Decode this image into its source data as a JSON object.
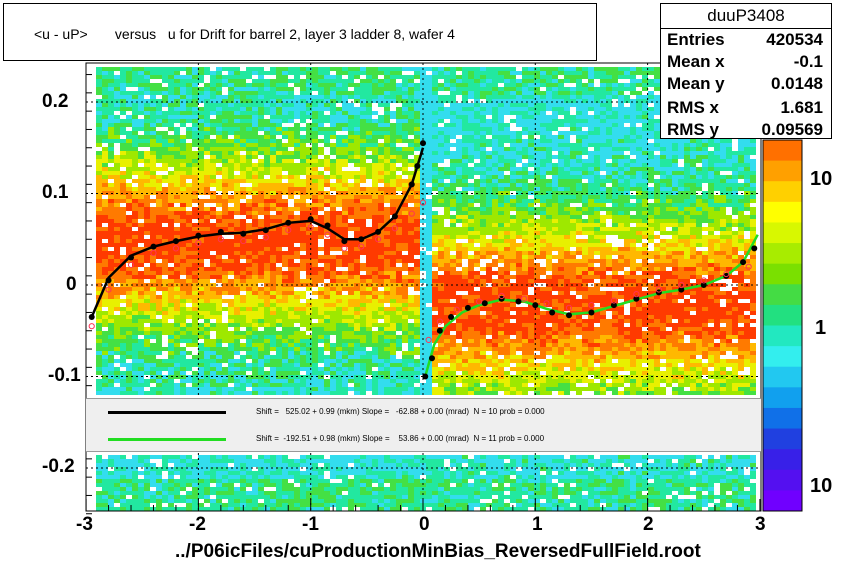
{
  "title": "<u - uP>       versus   u for Drift for barrel 2, layer 3 ladder 8, wafer 4",
  "stats": {
    "name": "duuP3408",
    "rows": [
      {
        "key": "Entries",
        "value": "420534"
      },
      {
        "key": "Mean x",
        "value": "-0.1"
      },
      {
        "key": "Mean y",
        "value": "0.0148"
      },
      {
        "key": "RMS x",
        "value": "1.681"
      },
      {
        "key": "RMS y",
        "value": "0.09569"
      }
    ]
  },
  "fits": [
    {
      "color": "#000000",
      "text": "Shift =   525.02 + 0.99 (mkm) Slope =   -62.88 + 0.00 (mrad)  N = 10 prob = 0.000"
    },
    {
      "color": "#22dd22",
      "text": "Shift =  -192.51 + 0.98 (mkm) Slope =    53.86 + 0.00 (mrad)  N = 11 prob = 0.000"
    }
  ],
  "file_label": "../P06icFiles/cuProductionMinBias_ReversedFullField.root",
  "x_ticks": [
    "-3",
    "-2",
    "-1",
    "0",
    "1",
    "2",
    "3"
  ],
  "y_ticks": [
    "0.2",
    "0.1",
    "0",
    "-0.1",
    "-0.2"
  ],
  "z_ticks": [
    "10",
    "1",
    "10"
  ],
  "chart_data": {
    "type": "heatmap",
    "xlim": [
      -3,
      3
    ],
    "ylim": [
      -0.25,
      0.25
    ],
    "grid": true,
    "series": [
      {
        "marker": "black-filled",
        "x": [
          -2.95,
          -2.8,
          -2.6,
          -2.4,
          -2.2,
          -2.0,
          -1.8,
          -1.6,
          -1.4,
          -1.2,
          -1.0,
          -0.85,
          -0.7,
          -0.55,
          -0.4,
          -0.25,
          -0.1,
          -0.05,
          0.0
        ],
        "y": [
          -0.035,
          0.005,
          0.03,
          0.042,
          0.048,
          0.054,
          0.058,
          0.056,
          0.06,
          0.068,
          0.072,
          0.065,
          0.048,
          0.05,
          0.058,
          0.075,
          0.11,
          0.13,
          0.155
        ]
      },
      {
        "marker": "black-filled",
        "x": [
          0.02,
          0.08,
          0.15,
          0.25,
          0.4,
          0.55,
          0.7,
          0.85,
          1.0,
          1.15,
          1.3,
          1.5,
          1.7,
          1.9,
          2.1,
          2.3,
          2.5,
          2.7,
          2.85,
          2.95
        ],
        "y": [
          -0.1,
          -0.08,
          -0.05,
          -0.035,
          -0.025,
          -0.02,
          -0.015,
          -0.018,
          -0.022,
          -0.03,
          -0.033,
          -0.03,
          -0.022,
          -0.015,
          -0.008,
          -0.005,
          0.0,
          0.01,
          0.025,
          0.04
        ]
      },
      {
        "marker": "red-open",
        "x": [
          -2.95,
          -2.8,
          -2.6,
          -2.4,
          -2.2,
          -2.0,
          -1.8,
          -1.6,
          -1.4,
          -1.2,
          -1.0,
          -0.85,
          -0.7,
          -0.55,
          -0.4,
          -0.25,
          -0.1,
          0.0
        ],
        "y": [
          -0.045,
          -0.005,
          0.022,
          0.035,
          0.04,
          0.046,
          0.05,
          0.048,
          0.052,
          0.06,
          0.063,
          0.055,
          0.04,
          0.042,
          0.05,
          0.062,
          0.078,
          0.09
        ]
      },
      {
        "marker": "red-open",
        "x": [
          0.05,
          0.15,
          0.3,
          0.5,
          0.7,
          0.9,
          1.1,
          1.3,
          1.5,
          1.7,
          1.9,
          2.1,
          2.3,
          2.5,
          2.7,
          2.9
        ],
        "y": [
          -0.06,
          -0.04,
          -0.027,
          -0.018,
          -0.012,
          -0.015,
          -0.02,
          -0.025,
          -0.022,
          -0.017,
          -0.01,
          -0.005,
          0.0,
          0.005,
          0.012,
          0.02
        ]
      }
    ],
    "fit_curves": [
      {
        "color": "#000000",
        "x": [
          -2.95,
          -2.8,
          -2.6,
          -2.4,
          -2.2,
          -2.0,
          -1.8,
          -1.6,
          -1.4,
          -1.2,
          -1.0,
          -0.85,
          -0.7,
          -0.55,
          -0.4,
          -0.25,
          -0.1,
          0.0
        ],
        "y": [
          -0.035,
          0.008,
          0.032,
          0.042,
          0.048,
          0.053,
          0.056,
          0.057,
          0.061,
          0.068,
          0.07,
          0.062,
          0.05,
          0.05,
          0.058,
          0.075,
          0.11,
          0.15
        ]
      },
      {
        "color": "#22dd22",
        "x": [
          0.02,
          0.1,
          0.2,
          0.35,
          0.5,
          0.7,
          0.9,
          1.1,
          1.3,
          1.5,
          1.7,
          1.9,
          2.1,
          2.3,
          2.5,
          2.7,
          2.85,
          2.98
        ],
        "y": [
          -0.1,
          -0.065,
          -0.045,
          -0.03,
          -0.022,
          -0.016,
          -0.018,
          -0.026,
          -0.032,
          -0.03,
          -0.023,
          -0.016,
          -0.009,
          -0.005,
          0.0,
          0.01,
          0.025,
          0.055
        ]
      }
    ]
  }
}
